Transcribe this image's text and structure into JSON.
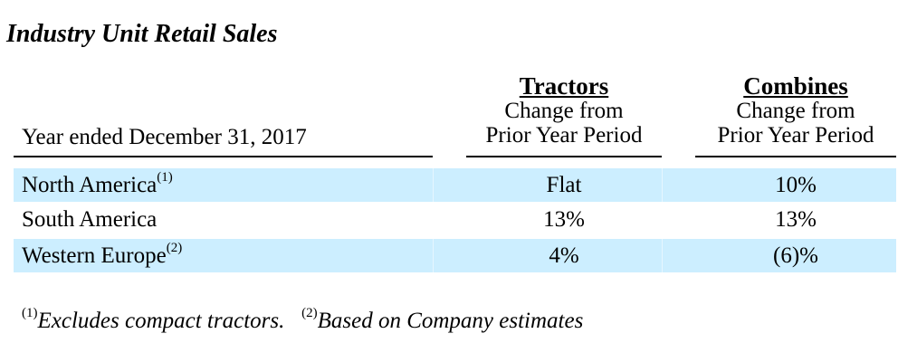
{
  "title": "Industry Unit Retail Sales",
  "header": {
    "row_label": "Year ended December 31, 2017",
    "columns": [
      {
        "title": "Tractors",
        "sub1": "Change from",
        "sub2": "Prior Year Period"
      },
      {
        "title": "Combines",
        "sub1": "Change from",
        "sub2": "Prior Year Period"
      }
    ]
  },
  "rows": [
    {
      "label": "North America",
      "note": "(1)",
      "tractors": "Flat",
      "combines": "10%",
      "shaded": true
    },
    {
      "label": "South America",
      "note": "",
      "tractors": "13%",
      "combines": "13%",
      "shaded": false
    },
    {
      "label": "Western Europe",
      "note": "(2)",
      "tractors": "4%",
      "combines": "(6)%",
      "shaded": true
    }
  ],
  "footnotes": [
    {
      "mark": "(1)",
      "text": "Excludes compact tractors."
    },
    {
      "mark": "(2)",
      "text": "Based on Company estimates"
    }
  ],
  "colors": {
    "row_shade": "#cceeff"
  }
}
